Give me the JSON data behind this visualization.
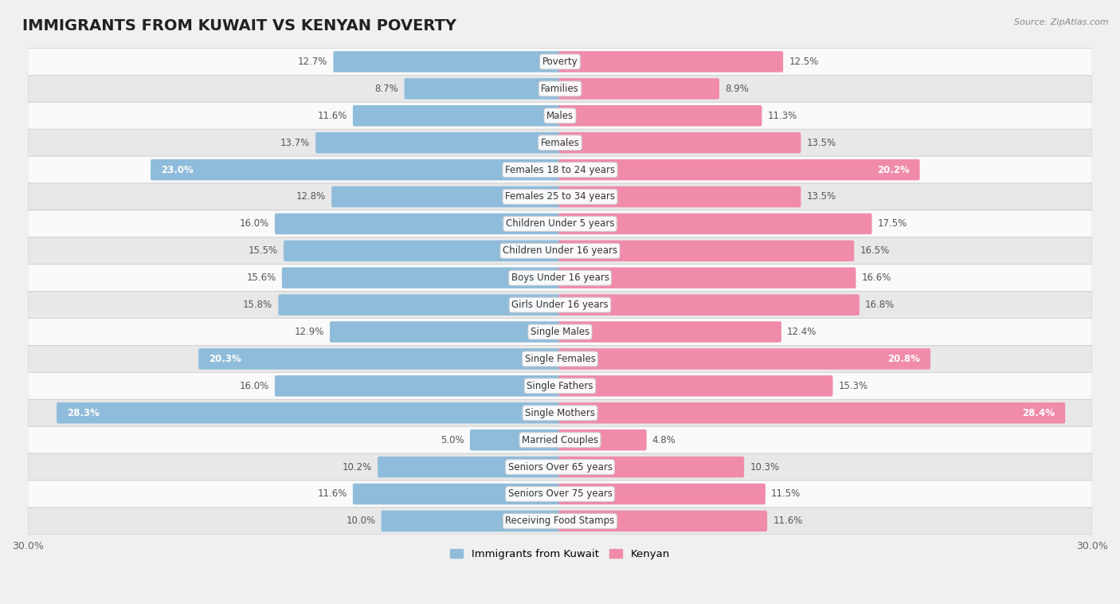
{
  "title": "IMMIGRANTS FROM KUWAIT VS KENYAN POVERTY",
  "source": "Source: ZipAtlas.com",
  "categories": [
    "Poverty",
    "Families",
    "Males",
    "Females",
    "Females 18 to 24 years",
    "Females 25 to 34 years",
    "Children Under 5 years",
    "Children Under 16 years",
    "Boys Under 16 years",
    "Girls Under 16 years",
    "Single Males",
    "Single Females",
    "Single Fathers",
    "Single Mothers",
    "Married Couples",
    "Seniors Over 65 years",
    "Seniors Over 75 years",
    "Receiving Food Stamps"
  ],
  "kuwait_values": [
    12.7,
    8.7,
    11.6,
    13.7,
    23.0,
    12.8,
    16.0,
    15.5,
    15.6,
    15.8,
    12.9,
    20.3,
    16.0,
    28.3,
    5.0,
    10.2,
    11.6,
    10.0
  ],
  "kenyan_values": [
    12.5,
    8.9,
    11.3,
    13.5,
    20.2,
    13.5,
    17.5,
    16.5,
    16.6,
    16.8,
    12.4,
    20.8,
    15.3,
    28.4,
    4.8,
    10.3,
    11.5,
    11.6
  ],
  "kuwait_color": "#8fbcdb",
  "kenyan_color": "#f08baa",
  "background_color": "#f0f0f0",
  "row_bg_light": "#fafafa",
  "row_bg_dark": "#e8e8e8",
  "xlim": 30.0,
  "legend_kuwait": "Immigrants from Kuwait",
  "legend_kenyan": "Kenyan",
  "bar_height": 0.62,
  "title_fontsize": 14,
  "label_fontsize": 8.5,
  "value_fontsize": 8.5,
  "inside_threshold": 18.0
}
